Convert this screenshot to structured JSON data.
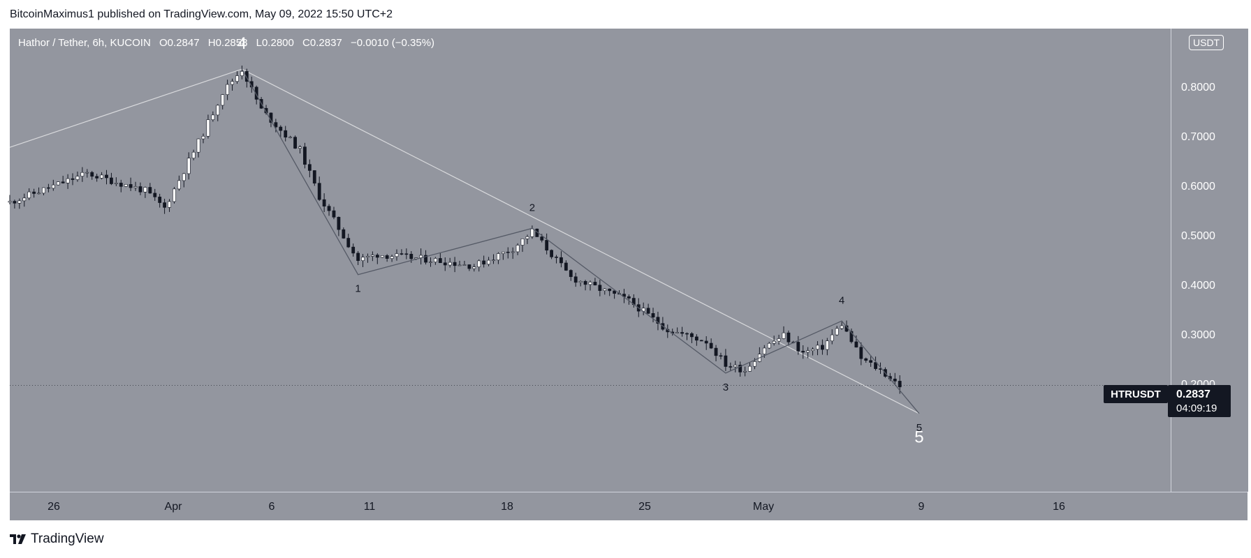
{
  "header": "BitcoinMaximus1 published on TradingView.com, May 09, 2022 15:50 UTC+2",
  "legend": {
    "symbol": "Hathor / Tether, 6h, KUCOIN",
    "o_label": "O",
    "o": "0.2847",
    "h_label": "H",
    "h": "0.2858",
    "l_label": "L",
    "l": "0.2800",
    "c_label": "C",
    "c": "0.2837",
    "change": "−0.0010 (−0.35%)"
  },
  "currency": "USDT",
  "y_ticks": [
    "0.8000",
    "0.7000",
    "0.6000",
    "0.5000",
    "0.4000",
    "0.3000",
    "0.2000"
  ],
  "x_ticks": [
    "26",
    "Apr",
    "6",
    "11",
    "18",
    "25",
    "May",
    "9",
    "16"
  ],
  "symbol_label": "HTRUSDT",
  "last_price": "0.2837",
  "countdown": "04:09:19",
  "footer": "TradingView",
  "colors": {
    "background": "#93969f",
    "bull_candle": "#ffffff",
    "bear_candle": "#131722",
    "wave_line": "#555a66",
    "trend_line": "#d9dadd"
  },
  "chart_data": {
    "type": "candlestick",
    "title": "Hathor / Tether, 6h, KUCOIN",
    "xlabel": "",
    "ylabel": "",
    "ylim": [
      0.1,
      0.9
    ],
    "y_scale": "linear",
    "x_range": [
      "2022-03-24",
      "2022-05-23"
    ],
    "date_axis": true,
    "last_price": 0.2837,
    "anchors": [
      {
        "date": "2022-03-24",
        "price": 0.6
      },
      {
        "date": "2022-03-28",
        "price": 0.65
      },
      {
        "date": "2022-03-31",
        "price": 0.62
      },
      {
        "date": "2022-04-01",
        "price": 0.59
      },
      {
        "date": "2022-04-03",
        "price": 0.72
      },
      {
        "date": "2022-04-04",
        "price": 0.79
      },
      {
        "date": "2022-04-05",
        "price": 0.83
      },
      {
        "date": "2022-04-06",
        "price": 0.76
      },
      {
        "date": "2022-04-08",
        "price": 0.69
      },
      {
        "date": "2022-04-09",
        "price": 0.61
      },
      {
        "date": "2022-04-11",
        "price": 0.5
      },
      {
        "date": "2022-04-12",
        "price": 0.51
      },
      {
        "date": "2022-04-15",
        "price": 0.5
      },
      {
        "date": "2022-04-17",
        "price": 0.49
      },
      {
        "date": "2022-04-19",
        "price": 0.52
      },
      {
        "date": "2022-04-20",
        "price": 0.55
      },
      {
        "date": "2022-04-22",
        "price": 0.47
      },
      {
        "date": "2022-04-25",
        "price": 0.43
      },
      {
        "date": "2022-04-27",
        "price": 0.38
      },
      {
        "date": "2022-04-29",
        "price": 0.36
      },
      {
        "date": "2022-04-30",
        "price": 0.32
      },
      {
        "date": "2022-05-01",
        "price": 0.31
      },
      {
        "date": "2022-05-02",
        "price": 0.35
      },
      {
        "date": "2022-05-03",
        "price": 0.37
      },
      {
        "date": "2022-05-04",
        "price": 0.34
      },
      {
        "date": "2022-05-05",
        "price": 0.35
      },
      {
        "date": "2022-05-06",
        "price": 0.39
      },
      {
        "date": "2022-05-07",
        "price": 0.33
      },
      {
        "date": "2022-05-08",
        "price": 0.31
      },
      {
        "date": "2022-05-09",
        "price": 0.284
      }
    ],
    "wave_path": [
      {
        "date": "2022-04-05",
        "price": 0.83
      },
      {
        "date": "2022-04-11",
        "price": 0.475
      },
      {
        "date": "2022-04-20",
        "price": 0.555
      },
      {
        "date": "2022-04-30",
        "price": 0.305
      },
      {
        "date": "2022-05-06",
        "price": 0.395
      },
      {
        "date": "2022-05-10",
        "price": 0.235
      }
    ],
    "trend_lines": [
      [
        {
          "date": "2022-03-24",
          "price": 0.695
        },
        {
          "date": "2022-04-05",
          "price": 0.83
        }
      ],
      [
        {
          "date": "2022-04-05",
          "price": 0.83
        },
        {
          "date": "2022-05-10",
          "price": 0.235
        }
      ]
    ],
    "annotations": [
      {
        "text": "4",
        "date": "2022-04-05",
        "price": 0.865,
        "size": "large",
        "color": "#ffffff"
      },
      {
        "text": "1",
        "date": "2022-04-11",
        "price": 0.445,
        "size": "small",
        "color": "#131722"
      },
      {
        "text": "2",
        "date": "2022-04-20",
        "price": 0.585,
        "size": "small",
        "color": "#131722"
      },
      {
        "text": "3",
        "date": "2022-04-30",
        "price": 0.275,
        "size": "small",
        "color": "#131722"
      },
      {
        "text": "4",
        "date": "2022-05-06",
        "price": 0.425,
        "size": "small",
        "color": "#131722"
      },
      {
        "text": "5",
        "date": "2022-05-10",
        "price": 0.205,
        "size": "small",
        "color": "#131722"
      },
      {
        "text": "5",
        "date": "2022-05-10",
        "price": 0.185,
        "size": "large",
        "color": "#ffffff"
      }
    ]
  }
}
